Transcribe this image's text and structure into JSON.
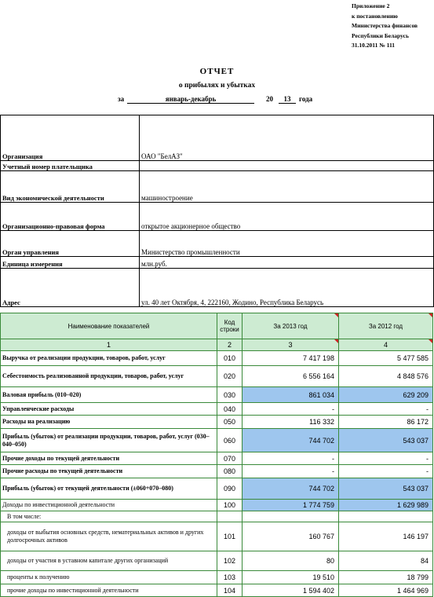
{
  "approval": [
    "Приложение 2",
    "к постановлению",
    "Министерства финансов",
    "Республики Беларусь",
    "31.10.2011 № 111"
  ],
  "report": {
    "title": "ОТЧЕТ",
    "subtitle": "о прибылях и убытках",
    "period_prefix": "за",
    "period": "январь-декабрь",
    "year_prefix": "20",
    "year": "13",
    "year_suffix": "года"
  },
  "info": [
    {
      "label": "Организация",
      "value": "ОАО \"БелАЗ\""
    },
    {
      "label": "Учетный номер плательщика",
      "value": ""
    },
    {
      "label": "Вид экономической деятельности",
      "value": "машиностроение"
    },
    {
      "label": "Организационно-правовая форма",
      "value": "открытое акционерное общество"
    },
    {
      "label": "Орган управления",
      "value": "Министерство промышленности"
    },
    {
      "label": "Единица измерения",
      "value": "млн.руб."
    },
    {
      "label": "Адрес",
      "value": "ул. 40 лет Октября, 4, 222160, Жодино, Республика Беларусь"
    }
  ],
  "table": {
    "headers": {
      "name": "Наименование показателей",
      "code": "Код строки",
      "y2013": "За 2013 год",
      "y2012": "За 2012 год"
    },
    "colnums": [
      "1",
      "2",
      "3",
      "4"
    ],
    "rows": [
      {
        "name": "Выручка от реализации продукции, товаров, работ, услуг",
        "code": "010",
        "y2013": "7 417 198",
        "y2012": "5 477 585"
      },
      {
        "name": "Себестоимость реализованной продукции, товаров, работ, услуг",
        "code": "020",
        "y2013": "6 556 164",
        "y2012": "4 848 576"
      },
      {
        "name": "Валовая прибыль (010–020)",
        "code": "030",
        "y2013": "861 034",
        "y2012": "629 209"
      },
      {
        "name": "Управленческие расходы",
        "code": "040",
        "y2013": "-",
        "y2012": "-"
      },
      {
        "name": "Расходы на реализацию",
        "code": "050",
        "y2013": "116 332",
        "y2012": "86 172"
      },
      {
        "name": "Прибыль (убыток) от реализации продукции, товаров, работ, услуг (030–040–050)",
        "code": "060",
        "y2013": "744 702",
        "y2012": "543 037"
      },
      {
        "name": "Прочие доходы по текущей деятельности",
        "code": "070",
        "y2013": "-",
        "y2012": "-"
      },
      {
        "name": "Прочие расходы по текущей деятельности",
        "code": "080",
        "y2013": "-",
        "y2012": "-"
      },
      {
        "name": "Прибыль (убыток) от текущей деятельности (±060+070–080)",
        "code": "090",
        "y2013": "744 702",
        "y2012": "543 037"
      },
      {
        "name": "Доходы по инвестиционной деятельности",
        "code": "100",
        "y2013": "1 774 759",
        "y2012": "1 629 989"
      },
      {
        "name": "В том числе:",
        "code": "",
        "y2013": "",
        "y2012": ""
      },
      {
        "name": "доходы от выбытия основных средств, нематериальных активов и других долгосрочных активов",
        "code": "101",
        "y2013": "160 767",
        "y2012": "146 197"
      },
      {
        "name": "доходы от участия в уставном капитале других организаций",
        "code": "102",
        "y2013": "80",
        "y2012": "84"
      },
      {
        "name": "проценты к получению",
        "code": "103",
        "y2013": "19 510",
        "y2012": "18 799"
      },
      {
        "name": "прочие доходы по инвестиционной деятельности",
        "code": "104",
        "y2013": "1 594 402",
        "y2012": "1 464 969"
      }
    ]
  }
}
